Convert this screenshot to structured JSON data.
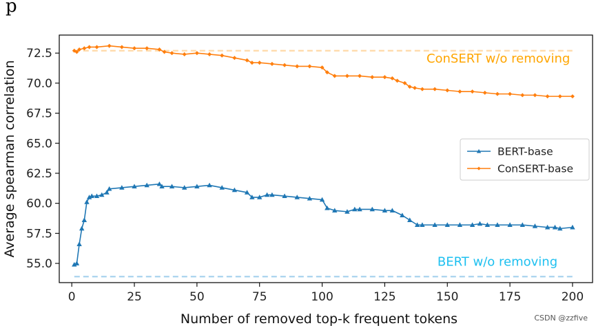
{
  "top_fragment": "p",
  "watermark": "CSDN @zzfive",
  "chart_data": {
    "type": "line",
    "title": "",
    "xlabel": "Number of removed top-k frequent tokens",
    "ylabel": "Average spearman correlation",
    "xlim": [
      -5,
      208
    ],
    "ylim": [
      53.4,
      74.0
    ],
    "xticks": [
      0,
      25,
      50,
      75,
      100,
      125,
      150,
      175,
      200
    ],
    "yticks": [
      55.0,
      57.5,
      60.0,
      62.5,
      65.0,
      67.5,
      70.0,
      72.5
    ],
    "ytick_labels": [
      "55.0",
      "57.5",
      "60.0",
      "62.5",
      "65.0",
      "67.5",
      "70.0",
      "72.5"
    ],
    "legend_position": "center-right",
    "colors": {
      "bert": "#1f77b4",
      "consert": "#ff7f0e",
      "consert_ref": "#ffd9a8",
      "bert_ref": "#a9d3ee",
      "consert_annot": "#ffa500",
      "bert_annot": "#1ec0f0"
    },
    "series": [
      {
        "name": "BERT-base",
        "marker": "triangle",
        "color": "#1f77b4",
        "x": [
          1,
          2,
          3,
          4,
          5,
          6,
          7,
          8,
          10,
          12,
          14,
          15,
          20,
          25,
          30,
          35,
          36,
          40,
          45,
          50,
          55,
          60,
          65,
          70,
          72,
          75,
          78,
          80,
          85,
          90,
          95,
          100,
          102,
          105,
          110,
          113,
          115,
          120,
          125,
          128,
          132,
          135,
          138,
          140,
          145,
          150,
          155,
          160,
          163,
          166,
          170,
          175,
          180,
          185,
          190,
          193,
          195,
          200
        ],
        "y": [
          54.9,
          55.0,
          56.6,
          57.9,
          58.6,
          60.1,
          60.5,
          60.6,
          60.6,
          60.7,
          60.9,
          61.2,
          61.3,
          61.4,
          61.5,
          61.6,
          61.4,
          61.4,
          61.3,
          61.4,
          61.5,
          61.3,
          61.1,
          60.9,
          60.5,
          60.5,
          60.7,
          60.7,
          60.6,
          60.5,
          60.4,
          60.3,
          59.6,
          59.4,
          59.3,
          59.5,
          59.5,
          59.5,
          59.4,
          59.4,
          59.0,
          58.6,
          58.2,
          58.2,
          58.2,
          58.2,
          58.2,
          58.2,
          58.3,
          58.2,
          58.2,
          58.2,
          58.2,
          58.1,
          58.0,
          58.0,
          57.9,
          58.0
        ]
      },
      {
        "name": "ConSERT-base",
        "marker": "diamond",
        "color": "#ff7f0e",
        "x": [
          1,
          2,
          3,
          5,
          7,
          10,
          15,
          20,
          25,
          30,
          35,
          37,
          40,
          45,
          50,
          55,
          60,
          65,
          70,
          72,
          75,
          80,
          85,
          90,
          95,
          100,
          102,
          105,
          110,
          115,
          120,
          125,
          128,
          130,
          133,
          135,
          137,
          140,
          145,
          150,
          155,
          160,
          165,
          170,
          175,
          180,
          185,
          190,
          195,
          200
        ],
        "y": [
          72.7,
          72.6,
          72.8,
          72.9,
          73.0,
          73.0,
          73.1,
          73.0,
          72.9,
          72.9,
          72.8,
          72.6,
          72.5,
          72.4,
          72.5,
          72.4,
          72.3,
          72.1,
          71.9,
          71.7,
          71.7,
          71.6,
          71.5,
          71.4,
          71.4,
          71.3,
          70.9,
          70.6,
          70.6,
          70.6,
          70.5,
          70.5,
          70.4,
          70.2,
          70.0,
          69.7,
          69.6,
          69.5,
          69.5,
          69.4,
          69.3,
          69.3,
          69.2,
          69.1,
          69.1,
          69.0,
          69.0,
          68.9,
          68.9,
          68.9
        ]
      }
    ],
    "reference_lines": [
      {
        "name": "ConSERT w/o removing",
        "y": 72.7,
        "color": "#ffd9a8",
        "label_color": "#ffa500"
      },
      {
        "name": "BERT w/o removing",
        "y": 53.9,
        "color": "#a9d3ee",
        "label_color": "#1ec0f0"
      }
    ],
    "annotations": [
      {
        "text": "ConSERT w/o removing",
        "color": "#ffa500",
        "anchor_x": 199,
        "anchor_y": 71.7
      },
      {
        "text": "BERT w/o removing",
        "color": "#1ec0f0",
        "anchor_x": 194,
        "anchor_y": 54.8
      }
    ]
  }
}
